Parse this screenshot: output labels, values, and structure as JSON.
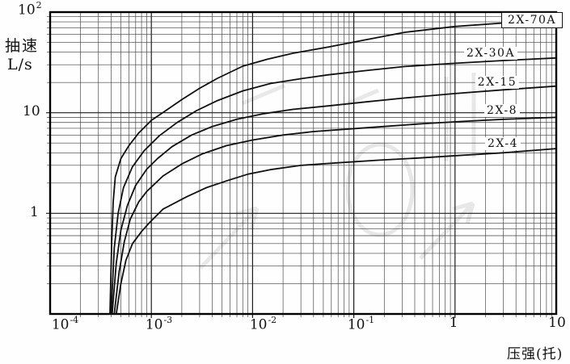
{
  "y_axis": {
    "title_line1": "抽速",
    "title_line2": "L/s",
    "ticks": [
      {
        "base": "10",
        "exp": "2"
      },
      {
        "base": "10",
        "exp": ""
      },
      {
        "base": "1",
        "exp": ""
      }
    ]
  },
  "x_axis": {
    "title": "压强(托)",
    "ticks": [
      {
        "base": "10",
        "exp": "-4"
      },
      {
        "base": "10",
        "exp": "-3"
      },
      {
        "base": "10",
        "exp": "-2"
      },
      {
        "base": "10",
        "exp": "-1"
      },
      {
        "base": "1",
        "exp": ""
      },
      {
        "base": "10",
        "exp": ""
      }
    ]
  },
  "chart_data": {
    "type": "line",
    "title": "",
    "xlabel": "压强(托)",
    "ylabel": "抽速 L/s",
    "x_scale": "log",
    "y_scale": "log",
    "xlim": [
      0.0001,
      10
    ],
    "ylim": [
      0.1,
      100
    ],
    "grid": "log minor grid on both axes",
    "legend_position": "labels inline at right of curves",
    "x_unit": "Torr (托)",
    "y_unit": "L/s",
    "series": [
      {
        "name": "2X-70A",
        "boxed_label": true,
        "points": [
          [
            0.00039,
            0.1
          ],
          [
            0.000405,
            0.5
          ],
          [
            0.00042,
            1.3
          ],
          [
            0.00044,
            2.3
          ],
          [
            0.0005,
            3.5
          ],
          [
            0.0006,
            4.7
          ],
          [
            0.00075,
            6.3
          ],
          [
            0.001,
            8.4
          ],
          [
            0.00135,
            10.3
          ],
          [
            0.002,
            13.5
          ],
          [
            0.003,
            17.5
          ],
          [
            0.0045,
            22
          ],
          [
            0.008,
            29
          ],
          [
            0.014,
            34
          ],
          [
            0.025,
            39
          ],
          [
            0.056,
            45
          ],
          [
            0.13,
            53
          ],
          [
            0.32,
            63
          ],
          [
            1,
            72
          ],
          [
            3,
            78
          ],
          [
            10,
            82
          ]
        ]
      },
      {
        "name": "2X-30A",
        "boxed_label": false,
        "points": [
          [
            0.0004,
            0.1
          ],
          [
            0.00043,
            0.45
          ],
          [
            0.00047,
            1.0
          ],
          [
            0.00053,
            1.8
          ],
          [
            0.00065,
            2.9
          ],
          [
            0.00085,
            4.2
          ],
          [
            0.0012,
            5.9
          ],
          [
            0.0018,
            8.0
          ],
          [
            0.0028,
            10.5
          ],
          [
            0.0045,
            13.2
          ],
          [
            0.008,
            16.5
          ],
          [
            0.015,
            19.5
          ],
          [
            0.03,
            21.8
          ],
          [
            0.056,
            23.8
          ],
          [
            0.13,
            26.2
          ],
          [
            0.32,
            28.8
          ],
          [
            1,
            31
          ],
          [
            3,
            33
          ],
          [
            10,
            35
          ]
        ]
      },
      {
        "name": "2X-15",
        "boxed_label": false,
        "points": [
          [
            0.00041,
            0.1
          ],
          [
            0.00045,
            0.32
          ],
          [
            0.0005,
            0.68
          ],
          [
            0.00058,
            1.2
          ],
          [
            0.0007,
            1.9
          ],
          [
            0.0009,
            2.75
          ],
          [
            0.00115,
            3.5
          ],
          [
            0.0016,
            4.6
          ],
          [
            0.0025,
            6.0
          ],
          [
            0.004,
            7.3
          ],
          [
            0.007,
            8.6
          ],
          [
            0.013,
            9.8
          ],
          [
            0.025,
            10.8
          ],
          [
            0.056,
            11.7
          ],
          [
            0.13,
            12.8
          ],
          [
            0.32,
            14.0
          ],
          [
            1,
            15.5
          ],
          [
            3,
            16.9
          ],
          [
            10,
            18.4
          ]
        ]
      },
      {
        "name": "2X-8",
        "boxed_label": false,
        "points": [
          [
            0.00043,
            0.1
          ],
          [
            0.00048,
            0.26
          ],
          [
            0.00054,
            0.52
          ],
          [
            0.00062,
            0.88
          ],
          [
            0.00075,
            1.3
          ],
          [
            0.0009,
            1.65
          ],
          [
            0.0013,
            2.35
          ],
          [
            0.002,
            3.1
          ],
          [
            0.0032,
            3.9
          ],
          [
            0.0055,
            4.7
          ],
          [
            0.01,
            5.35
          ],
          [
            0.02,
            6.0
          ],
          [
            0.04,
            6.5
          ],
          [
            0.09,
            6.9
          ],
          [
            0.2,
            7.3
          ],
          [
            0.5,
            7.8
          ],
          [
            1.2,
            8.2
          ],
          [
            3,
            8.6
          ],
          [
            10,
            9.0
          ]
        ]
      },
      {
        "name": "2X-4",
        "boxed_label": false,
        "points": [
          [
            0.00045,
            0.1
          ],
          [
            0.0005,
            0.2
          ],
          [
            0.00056,
            0.34
          ],
          [
            0.00065,
            0.5
          ],
          [
            0.0008,
            0.66
          ],
          [
            0.00095,
            0.8
          ],
          [
            0.0013,
            1.1
          ],
          [
            0.0022,
            1.45
          ],
          [
            0.0035,
            1.8
          ],
          [
            0.0055,
            2.1
          ],
          [
            0.009,
            2.45
          ],
          [
            0.015,
            2.72
          ],
          [
            0.03,
            3.0
          ],
          [
            0.07,
            3.18
          ],
          [
            0.18,
            3.38
          ],
          [
            0.45,
            3.55
          ],
          [
            1.2,
            3.78
          ],
          [
            3,
            4.0
          ],
          [
            10,
            4.4
          ]
        ]
      }
    ]
  }
}
